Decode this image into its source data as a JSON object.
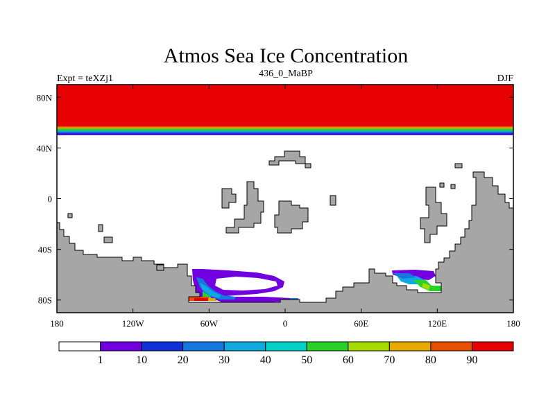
{
  "chart_data": {
    "type": "heatmap",
    "title": "Atmos Sea Ice Concentration",
    "left_label": "Expt = teXZj1",
    "center_label": "436_0_MaBP",
    "right_label": "DJF",
    "x_ticks": [
      {
        "lon": -180,
        "label": "180"
      },
      {
        "lon": -120,
        "label": "120W"
      },
      {
        "lon": -60,
        "label": "60W"
      },
      {
        "lon": 0,
        "label": "0"
      },
      {
        "lon": 60,
        "label": "60E"
      },
      {
        "lon": 120,
        "label": "120E"
      },
      {
        "lon": 180,
        "label": "180"
      }
    ],
    "y_ticks": [
      {
        "lat": 80,
        "label": "80N"
      },
      {
        "lat": 40,
        "label": "40N"
      },
      {
        "lat": 0,
        "label": "0"
      },
      {
        "lat": -40,
        "label": "40S"
      },
      {
        "lat": -80,
        "label": "80S"
      }
    ],
    "xlim": [
      -180,
      180
    ],
    "ylim": [
      -90,
      90
    ],
    "colorbar": {
      "levels": [
        "1",
        "10",
        "20",
        "30",
        "40",
        "50",
        "60",
        "70",
        "80",
        "90"
      ],
      "colors": [
        "#ffffff",
        "#7000e0",
        "#1030d8",
        "#1478e0",
        "#10aae0",
        "#00d2c8",
        "#28d228",
        "#a8dc00",
        "#e6aa00",
        "#e65000",
        "#e60000"
      ]
    },
    "land_color": "#a6a6a6",
    "north_ice_band": {
      "lat_min": 50,
      "lat_max": 90,
      "stops": [
        {
          "lat": 50,
          "value": 5
        },
        {
          "lat": 51.5,
          "value": 15
        },
        {
          "lat": 53,
          "value": 35
        },
        {
          "lat": 54.5,
          "value": 55
        },
        {
          "lat": 56,
          "value": 75
        },
        {
          "lat": 57.5,
          "value": 90
        },
        {
          "lat": 59,
          "value": 100
        }
      ]
    }
  }
}
